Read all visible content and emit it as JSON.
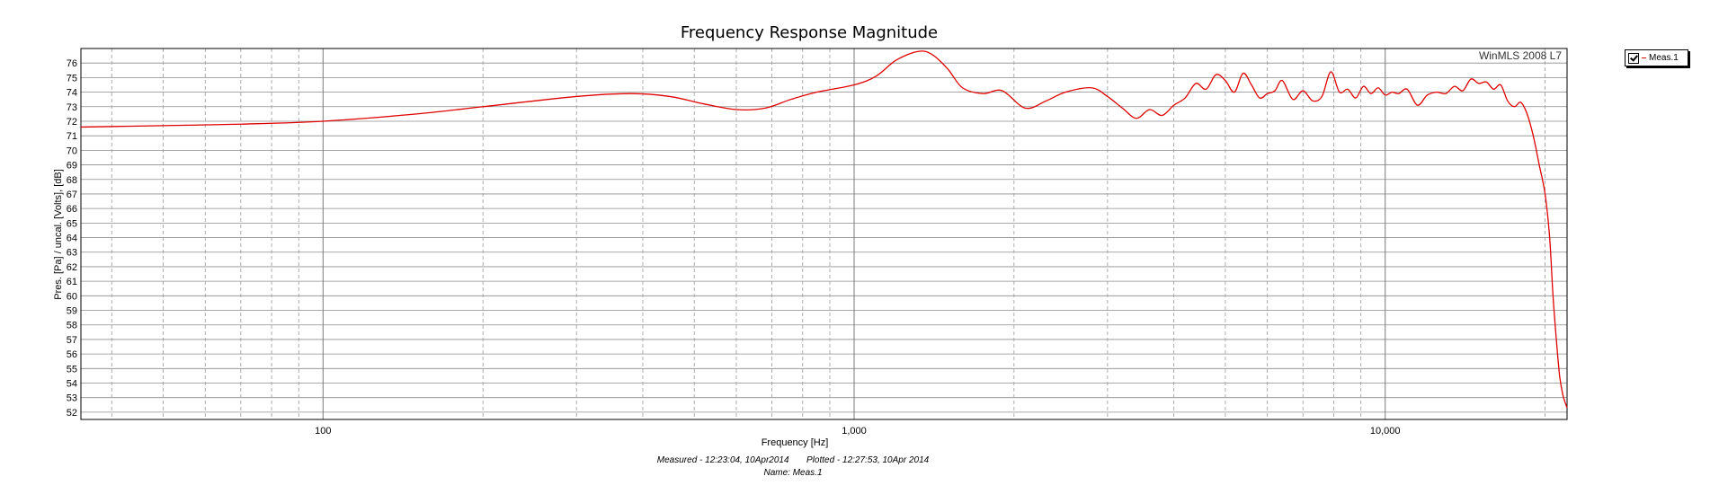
{
  "chart_data": {
    "type": "line",
    "title": "Frequency Response Magnitude",
    "xlabel": "Frequency [Hz]",
    "ylabel": "Pres. [Pa] / uncal. [Volts], [dB]",
    "xscale": "log",
    "xlim": [
      35,
      22000
    ],
    "ylim": [
      51.5,
      77
    ],
    "x_tick_labels": [
      {
        "value": 100,
        "label": "100"
      },
      {
        "value": 1000,
        "label": "1,000"
      },
      {
        "value": 10000,
        "label": "10,000"
      }
    ],
    "y_ticks": [
      52,
      53,
      54,
      55,
      56,
      57,
      58,
      59,
      60,
      61,
      62,
      63,
      64,
      65,
      66,
      67,
      68,
      69,
      70,
      71,
      72,
      73,
      74,
      75,
      76
    ],
    "grid": true,
    "legend_position": "outside-right",
    "series": [
      {
        "name": "Meas.1",
        "color": "#e00000",
        "x": [
          35,
          50,
          70,
          100,
          150,
          200,
          300,
          380,
          450,
          520,
          600,
          680,
          760,
          850,
          1000,
          1100,
          1200,
          1320,
          1400,
          1500,
          1600,
          1750,
          1900,
          2100,
          2300,
          2500,
          2800,
          3000,
          3200,
          3400,
          3600,
          3800,
          4000,
          4200,
          4400,
          4600,
          4800,
          5000,
          5200,
          5400,
          5600,
          5800,
          6000,
          6200,
          6400,
          6700,
          7000,
          7300,
          7600,
          7900,
          8200,
          8500,
          8800,
          9100,
          9400,
          9700,
          10000,
          10300,
          10600,
          11000,
          11500,
          12000,
          12500,
          13000,
          13500,
          14000,
          14500,
          15000,
          15500,
          16000,
          16500,
          17000,
          17500,
          18000,
          18500,
          19000,
          19500,
          20000,
          20400,
          20700,
          21000,
          21300,
          21600,
          21850,
          22000
        ],
        "values": [
          71.6,
          71.7,
          71.8,
          72.0,
          72.5,
          73.0,
          73.7,
          73.9,
          73.7,
          73.2,
          72.8,
          72.9,
          73.5,
          74.0,
          74.5,
          75.1,
          76.2,
          76.8,
          76.6,
          75.6,
          74.3,
          73.9,
          74.1,
          72.9,
          73.4,
          74.0,
          74.3,
          73.7,
          72.9,
          72.2,
          72.8,
          72.4,
          73.1,
          73.6,
          74.6,
          74.2,
          75.2,
          74.8,
          74.0,
          75.3,
          74.5,
          73.6,
          73.9,
          74.1,
          74.8,
          73.5,
          74.1,
          73.4,
          73.7,
          75.4,
          74.0,
          74.2,
          73.6,
          74.4,
          73.9,
          74.3,
          73.8,
          74.0,
          73.9,
          74.2,
          73.1,
          73.8,
          74.0,
          73.9,
          74.4,
          74.1,
          74.9,
          74.6,
          74.7,
          74.2,
          74.5,
          73.4,
          73.0,
          73.3,
          72.5,
          71.0,
          69.0,
          67.0,
          64.0,
          60.0,
          57.0,
          54.5,
          53.2,
          52.6,
          52.3
        ]
      }
    ],
    "watermark": "WinMLS 2008 L7",
    "footer": {
      "line1": "Measured - 12:23:04, 10Apr2014       Plotted - 12:27:53, 10Apr 2014",
      "line2": "Name: Meas.1"
    }
  },
  "legend": {
    "entry": "Meas.1",
    "checked": true
  }
}
